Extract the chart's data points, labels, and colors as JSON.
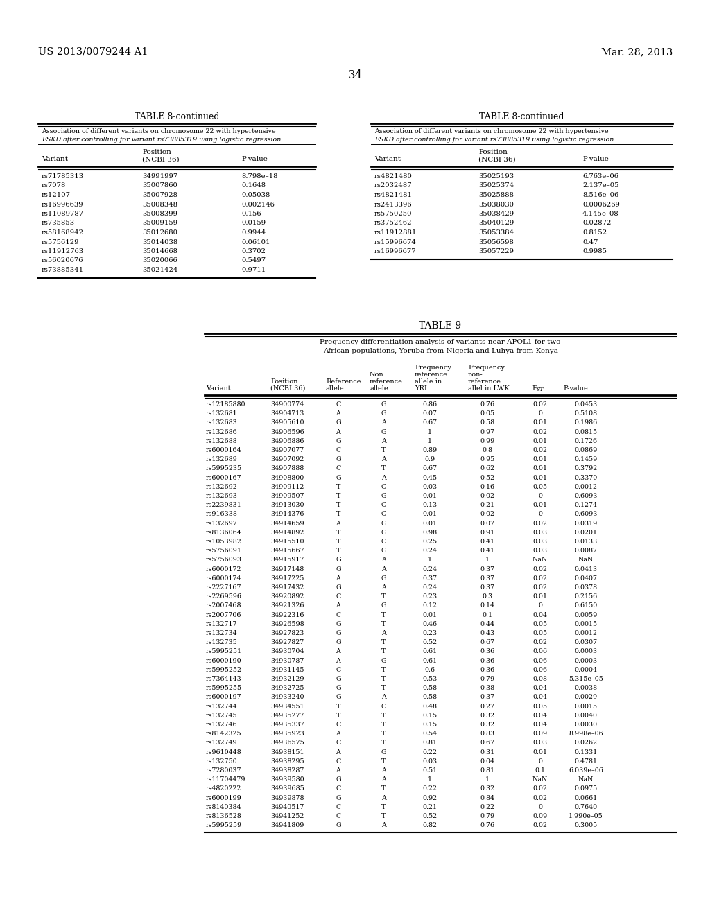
{
  "header_left": "US 2013/0079244 A1",
  "header_right": "Mar. 28, 2013",
  "page_number": "34",
  "table8_left_title": "TABLE 8-continued",
  "table8_right_title": "TABLE 8-continued",
  "table8_left_data": [
    [
      "rs71785313",
      "34991997",
      "8.798e–18"
    ],
    [
      "rs7078",
      "35007860",
      "0.1648"
    ],
    [
      "rs12107",
      "35007928",
      "0.05038"
    ],
    [
      "rs16996639",
      "35008348",
      "0.002146"
    ],
    [
      "rs11089787",
      "35008399",
      "0.156"
    ],
    [
      "rs735853",
      "35009159",
      "0.0159"
    ],
    [
      "rs58168942",
      "35012680",
      "0.9944"
    ],
    [
      "rs5756129",
      "35014038",
      "0.06101"
    ],
    [
      "rs11912763",
      "35014668",
      "0.3702"
    ],
    [
      "rs56020676",
      "35020066",
      "0.5497"
    ],
    [
      "rs73885341",
      "35021424",
      "0.9711"
    ]
  ],
  "table8_right_data": [
    [
      "rs4821480",
      "35025193",
      "6.763e–06"
    ],
    [
      "rs2032487",
      "35025374",
      "2.137e–05"
    ],
    [
      "rs4821481",
      "35025888",
      "8.516e–06"
    ],
    [
      "rs2413396",
      "35038030",
      "0.0006269"
    ],
    [
      "rs5750250",
      "35038429",
      "4.145e–08"
    ],
    [
      "rs3752462",
      "35040129",
      "0.02872"
    ],
    [
      "rs11912881",
      "35053384",
      "0.8152"
    ],
    [
      "rs15996674",
      "35056598",
      "0.47"
    ],
    [
      "rs16996677",
      "35057229",
      "0.9985"
    ]
  ],
  "table9_title": "TABLE 9",
  "table9_data": [
    [
      "rs12185880",
      "34900774",
      "C",
      "G",
      "0.86",
      "0.76",
      "0.02",
      "0.0453"
    ],
    [
      "rs132681",
      "34904713",
      "A",
      "G",
      "0.07",
      "0.05",
      "0",
      "0.5108"
    ],
    [
      "rs132683",
      "34905610",
      "G",
      "A",
      "0.67",
      "0.58",
      "0.01",
      "0.1986"
    ],
    [
      "rs132686",
      "34906596",
      "A",
      "G",
      "1",
      "0.97",
      "0.02",
      "0.0815"
    ],
    [
      "rs132688",
      "34906886",
      "G",
      "A",
      "1",
      "0.99",
      "0.01",
      "0.1726"
    ],
    [
      "rs6000164",
      "34907077",
      "C",
      "T",
      "0.89",
      "0.8",
      "0.02",
      "0.0869"
    ],
    [
      "rs132689",
      "34907092",
      "G",
      "A",
      "0.9",
      "0.95",
      "0.01",
      "0.1459"
    ],
    [
      "rs5995235",
      "34907888",
      "C",
      "T",
      "0.67",
      "0.62",
      "0.01",
      "0.3792"
    ],
    [
      "rs6000167",
      "34908800",
      "G",
      "A",
      "0.45",
      "0.52",
      "0.01",
      "0.3370"
    ],
    [
      "rs132692",
      "34909112",
      "T",
      "C",
      "0.03",
      "0.16",
      "0.05",
      "0.0012"
    ],
    [
      "rs132693",
      "34909507",
      "T",
      "G",
      "0.01",
      "0.02",
      "0",
      "0.6093"
    ],
    [
      "rs2239831",
      "34913030",
      "T",
      "C",
      "0.13",
      "0.21",
      "0.01",
      "0.1274"
    ],
    [
      "rs916338",
      "34914376",
      "T",
      "C",
      "0.01",
      "0.02",
      "0",
      "0.6093"
    ],
    [
      "rs132697",
      "34914659",
      "A",
      "G",
      "0.01",
      "0.07",
      "0.02",
      "0.0319"
    ],
    [
      "rs8136064",
      "34914892",
      "T",
      "G",
      "0.98",
      "0.91",
      "0.03",
      "0.0201"
    ],
    [
      "rs1053982",
      "34915510",
      "T",
      "C",
      "0.25",
      "0.41",
      "0.03",
      "0.0133"
    ],
    [
      "rs5756091",
      "34915667",
      "T",
      "G",
      "0.24",
      "0.41",
      "0.03",
      "0.0087"
    ],
    [
      "rs5756093",
      "34915917",
      "G",
      "A",
      "1",
      "1",
      "NaN",
      "NaN"
    ],
    [
      "rs6000172",
      "34917148",
      "G",
      "A",
      "0.24",
      "0.37",
      "0.02",
      "0.0413"
    ],
    [
      "rs6000174",
      "34917225",
      "A",
      "G",
      "0.37",
      "0.37",
      "0.02",
      "0.0407"
    ],
    [
      "rs2227167",
      "34917432",
      "G",
      "A",
      "0.24",
      "0.37",
      "0.02",
      "0.0378"
    ],
    [
      "rs2269596",
      "34920892",
      "C",
      "T",
      "0.23",
      "0.3",
      "0.01",
      "0.2156"
    ],
    [
      "rs2007468",
      "34921326",
      "A",
      "G",
      "0.12",
      "0.14",
      "0",
      "0.6150"
    ],
    [
      "rs2007706",
      "34922316",
      "C",
      "T",
      "0.01",
      "0.1",
      "0.04",
      "0.0059"
    ],
    [
      "rs132717",
      "34926598",
      "G",
      "T",
      "0.46",
      "0.44",
      "0.05",
      "0.0015"
    ],
    [
      "rs132734",
      "34927823",
      "G",
      "A",
      "0.23",
      "0.43",
      "0.05",
      "0.0012"
    ],
    [
      "rs132735",
      "34927827",
      "G",
      "T",
      "0.52",
      "0.67",
      "0.02",
      "0.0307"
    ],
    [
      "rs5995251",
      "34930704",
      "A",
      "T",
      "0.61",
      "0.36",
      "0.06",
      "0.0003"
    ],
    [
      "rs6000190",
      "34930787",
      "A",
      "G",
      "0.61",
      "0.36",
      "0.06",
      "0.0003"
    ],
    [
      "rs5995252",
      "34931145",
      "C",
      "T",
      "0.6",
      "0.36",
      "0.06",
      "0.0004"
    ],
    [
      "rs7364143",
      "34932129",
      "G",
      "T",
      "0.53",
      "0.79",
      "0.08",
      "5.315e–05"
    ],
    [
      "rs5995255",
      "34932725",
      "G",
      "T",
      "0.58",
      "0.38",
      "0.04",
      "0.0038"
    ],
    [
      "rs6000197",
      "34933240",
      "G",
      "A",
      "0.58",
      "0.37",
      "0.04",
      "0.0029"
    ],
    [
      "rs132744",
      "34934551",
      "T",
      "C",
      "0.48",
      "0.27",
      "0.05",
      "0.0015"
    ],
    [
      "rs132745",
      "34935277",
      "T",
      "T",
      "0.15",
      "0.32",
      "0.04",
      "0.0040"
    ],
    [
      "rs132746",
      "34935337",
      "C",
      "T",
      "0.15",
      "0.32",
      "0.04",
      "0.0030"
    ],
    [
      "rs8142325",
      "34935923",
      "A",
      "T",
      "0.54",
      "0.83",
      "0.09",
      "8.998e–06"
    ],
    [
      "rs132749",
      "34936575",
      "C",
      "T",
      "0.81",
      "0.67",
      "0.03",
      "0.0262"
    ],
    [
      "rs9610448",
      "34938151",
      "A",
      "G",
      "0.22",
      "0.31",
      "0.01",
      "0.1331"
    ],
    [
      "rs132750",
      "34938295",
      "C",
      "T",
      "0.03",
      "0.04",
      "0",
      "0.4781"
    ],
    [
      "rs7280037",
      "34938287",
      "A",
      "A",
      "0.51",
      "0.81",
      "0.1",
      "6.039e–06"
    ],
    [
      "rs11704479",
      "34939580",
      "G",
      "A",
      "1",
      "1",
      "NaN",
      "NaN"
    ],
    [
      "rs4820222",
      "34939685",
      "C",
      "T",
      "0.22",
      "0.32",
      "0.02",
      "0.0975"
    ],
    [
      "rs6000199",
      "34939878",
      "G",
      "A",
      "0.92",
      "0.84",
      "0.02",
      "0.0661"
    ],
    [
      "rs8140384",
      "34940517",
      "C",
      "T",
      "0.21",
      "0.22",
      "0",
      "0.7640"
    ],
    [
      "rs8136528",
      "34941252",
      "C",
      "T",
      "0.52",
      "0.79",
      "0.09",
      "1.990e–05"
    ],
    [
      "rs5995259",
      "34941809",
      "G",
      "A",
      "0.82",
      "0.76",
      "0.02",
      "0.3005"
    ]
  ],
  "bg_color": "#ffffff",
  "text_color": "#000000",
  "line_color": "#000000"
}
